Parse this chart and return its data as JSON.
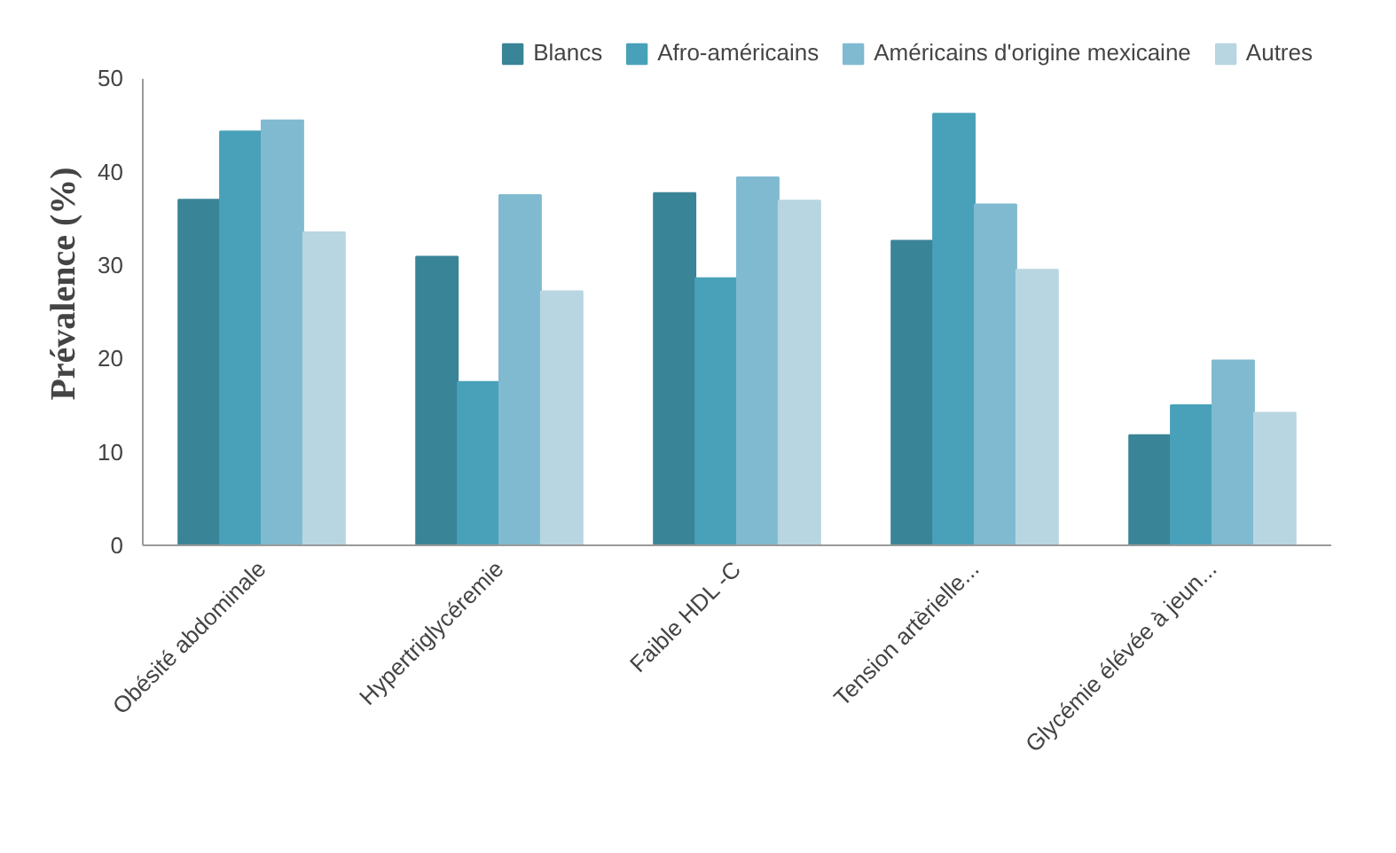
{
  "chart_data": {
    "type": "bar",
    "ylabel": "Prévalence (%)",
    "categories": [
      "Obésité abdominale",
      "Hypertriglycéremie",
      "Faible HDL -C",
      "Tension artèrielle...",
      "Glycémie élévée à jeun..."
    ],
    "series": [
      {
        "name": "Blancs",
        "color": "#3a8498",
        "values": [
          37.0,
          30.9,
          37.7,
          32.6,
          11.8
        ]
      },
      {
        "name": "Afro-américains",
        "color": "#48a1b9",
        "values": [
          44.3,
          17.5,
          28.6,
          46.2,
          15.0
        ]
      },
      {
        "name": "Américains d'origine mexicaine",
        "color": "#80bad0",
        "values": [
          45.5,
          37.5,
          39.4,
          36.5,
          19.8
        ]
      },
      {
        "name": "Autres",
        "color": "#b7d6e1",
        "values": [
          33.5,
          27.2,
          36.9,
          29.5,
          14.2
        ]
      }
    ],
    "ylim": [
      0,
      50
    ],
    "yticks": [
      0,
      10,
      20,
      30,
      40,
      50
    ],
    "grid": false,
    "legend": "top"
  }
}
